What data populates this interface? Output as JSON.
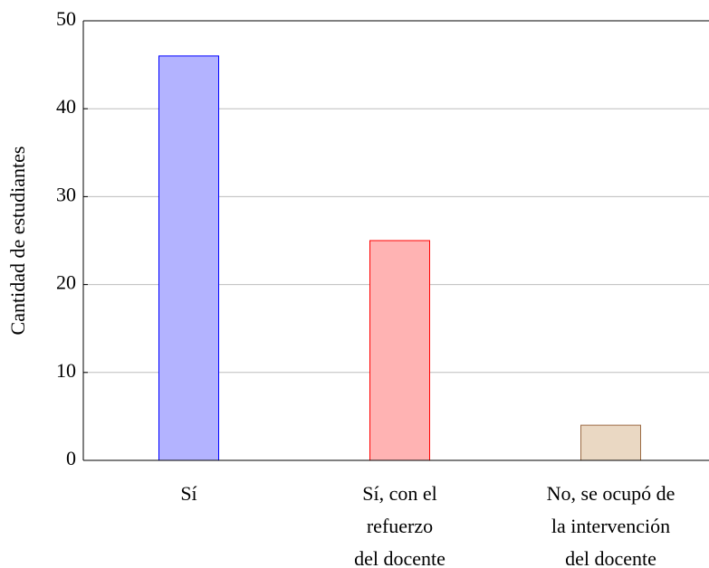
{
  "chart_data": {
    "type": "bar",
    "ylabel": "Cantidad de estudiantes",
    "categories": [
      [
        "Sí"
      ],
      [
        "Sí, con el",
        "refuerzo",
        "del docente"
      ],
      [
        "No, se ocupó de",
        "la intervención",
        "del docente"
      ]
    ],
    "values": [
      46,
      25,
      4
    ],
    "colors": [
      "#b3b3ff",
      "#ffb3b3",
      "#ead8c3"
    ],
    "edge_colors": [
      "#0000ff",
      "#ff0000",
      "#9c6b45"
    ],
    "ylim": [
      0,
      50
    ],
    "yticks": [
      0,
      10,
      20,
      30,
      40,
      50
    ],
    "grid": true
  }
}
